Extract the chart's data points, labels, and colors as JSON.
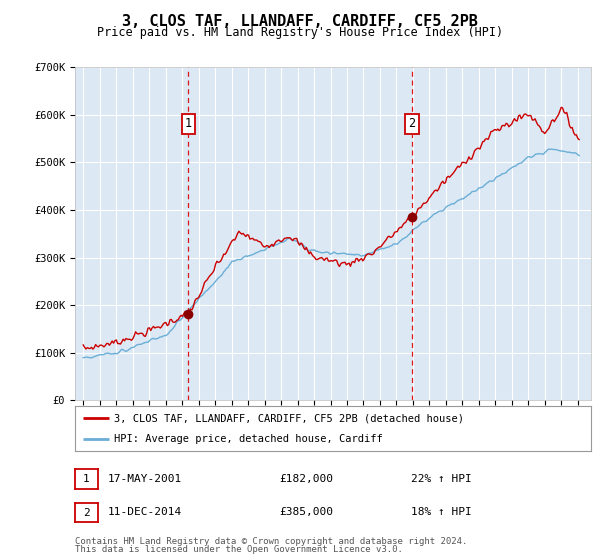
{
  "title": "3, CLOS TAF, LLANDAFF, CARDIFF, CF5 2PB",
  "subtitle": "Price paid vs. HM Land Registry's House Price Index (HPI)",
  "ylim": [
    0,
    700000
  ],
  "yticks": [
    0,
    100000,
    200000,
    300000,
    400000,
    500000,
    600000,
    700000
  ],
  "ytick_labels": [
    "£0",
    "£100K",
    "£200K",
    "£300K",
    "£400K",
    "£500K",
    "£600K",
    "£700K"
  ],
  "xmin": 1994.5,
  "xmax": 2025.8,
  "background_color": "#ffffff",
  "plot_bg_color": "#dce9f5",
  "grid_color": "#ffffff",
  "sale1": {
    "label": "1",
    "date": "17-MAY-2001",
    "price": 182000,
    "price_str": "£182,000",
    "pct": "22%",
    "x": 2001.38
  },
  "sale2": {
    "label": "2",
    "date": "11-DEC-2014",
    "price": 385000,
    "price_str": "£385,000",
    "pct": "18%",
    "x": 2014.95
  },
  "legend_line1": "3, CLOS TAF, LLANDAFF, CARDIFF, CF5 2PB (detached house)",
  "legend_line2": "HPI: Average price, detached house, Cardiff",
  "footer1": "Contains HM Land Registry data © Crown copyright and database right 2024.",
  "footer2": "This data is licensed under the Open Government Licence v3.0.",
  "hpi_color": "#6baed6",
  "sale_color": "#cc0000",
  "marker_color": "#8b0000",
  "anno_box_color": "#cc0000",
  "sale1_marker_y": 182000,
  "sale2_marker_y": 385000
}
